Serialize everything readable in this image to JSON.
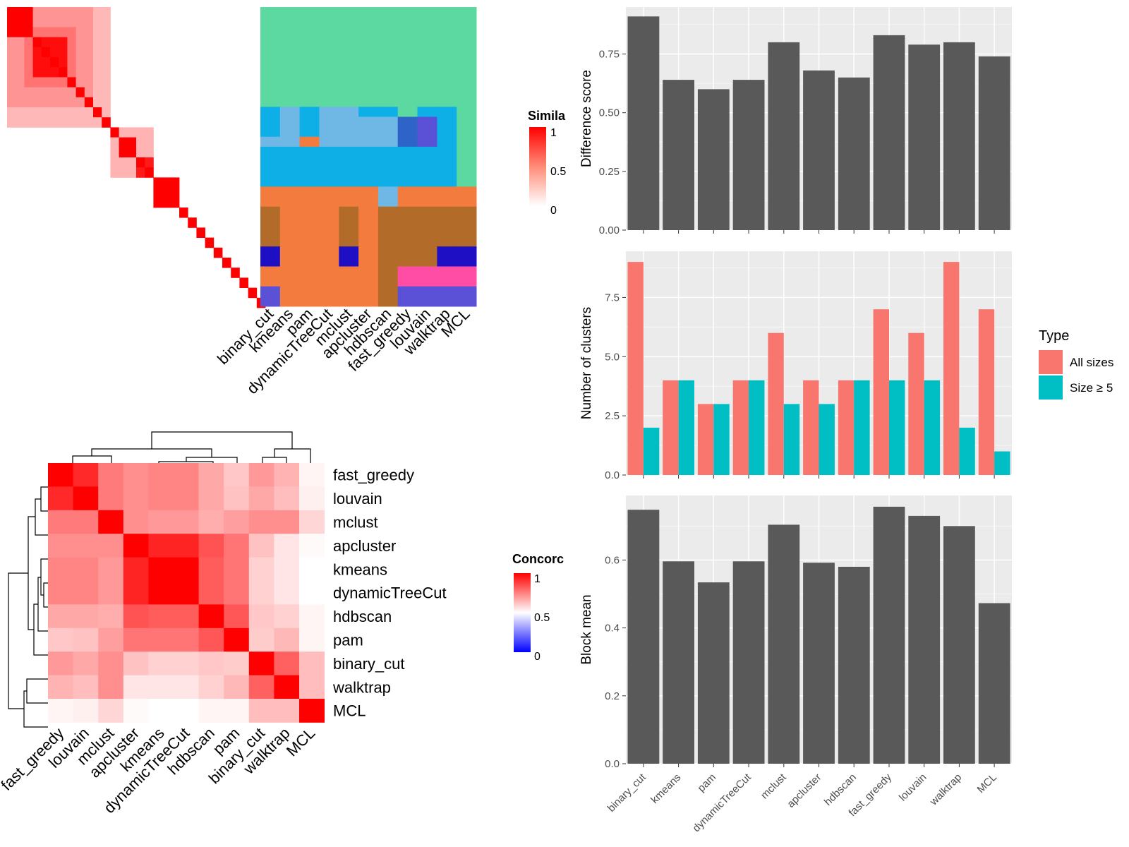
{
  "colors": {
    "bar": "#595959",
    "panel_bg": "#ebebeb",
    "all_sizes": "#f8766d",
    "size_ge5": "#00bfc4",
    "heat_high": "#ff0000",
    "heat_low": "#ffffff",
    "conc_low": "#0000ff"
  },
  "chart_data": [
    {
      "id": "similarity_heatmap",
      "type": "heatmap",
      "legend_title": "Simila",
      "legend_ticks": [
        "1",
        "0.5",
        "0"
      ],
      "note": "co-clustering similarity matrix of 30 items; values are approximate",
      "size": 30,
      "bands": [
        {
          "members": [
            0,
            1,
            2,
            3,
            4,
            5,
            6,
            7,
            8,
            9,
            10,
            11
          ],
          "value": 0.28
        },
        {
          "members": [
            0,
            1,
            2,
            3,
            4,
            5,
            6,
            7,
            8,
            9
          ],
          "value": 0.42
        },
        {
          "members": [
            0,
            1,
            2
          ],
          "value": 1.0
        },
        {
          "members": [
            2,
            3,
            4,
            5,
            6,
            7
          ],
          "value": 0.55
        },
        {
          "members": [
            3,
            4,
            5,
            6
          ],
          "value": 0.95
        },
        {
          "members": [
            13,
            14
          ],
          "value": 1.0
        },
        {
          "members": [
            15,
            16
          ],
          "value": 0.9
        },
        {
          "members": [
            17,
            18,
            19
          ],
          "value": 1.0
        },
        {
          "members": [
            12,
            13,
            14,
            15,
            16
          ],
          "value": 0.3
        }
      ]
    },
    {
      "id": "cluster_assignments",
      "type": "heatmap",
      "columns": [
        "binary_cut",
        "kmeans",
        "pam",
        "dynamicTreeCut",
        "mclust",
        "apcluster",
        "hdbscan",
        "fast_greedy",
        "louvain",
        "walktrap",
        "MCL"
      ],
      "palette": [
        "#5cd9a0",
        "#0eaee6",
        "#6fb8e6",
        "#f47b3e",
        "#b36b29",
        "#1e0fc4",
        "#ff4da6",
        "#2e64c8",
        "#5a51d6"
      ],
      "segments": [
        {
          "rows": 3,
          "codes": [
            0,
            0,
            0,
            0,
            0,
            0,
            0,
            0,
            0,
            0,
            0
          ]
        },
        {
          "rows": 7,
          "codes": [
            0,
            0,
            0,
            0,
            0,
            0,
            0,
            0,
            0,
            0,
            0
          ]
        },
        {
          "rows": 1,
          "codes": [
            1,
            2,
            1,
            2,
            2,
            1,
            1,
            0,
            1,
            1,
            0
          ]
        },
        {
          "rows": 2,
          "codes": [
            1,
            2,
            1,
            2,
            2,
            2,
            2,
            7,
            8,
            1,
            0
          ]
        },
        {
          "rows": 1,
          "codes": [
            2,
            2,
            3,
            2,
            2,
            2,
            2,
            7,
            8,
            1,
            0
          ]
        },
        {
          "rows": 4,
          "codes": [
            1,
            1,
            1,
            1,
            1,
            1,
            1,
            1,
            1,
            1,
            0
          ]
        },
        {
          "rows": 2,
          "codes": [
            3,
            3,
            3,
            3,
            3,
            3,
            2,
            3,
            3,
            3,
            3
          ]
        },
        {
          "rows": 4,
          "codes": [
            4,
            3,
            3,
            3,
            4,
            3,
            4,
            4,
            4,
            4,
            4
          ]
        },
        {
          "rows": 2,
          "codes": [
            5,
            3,
            3,
            3,
            5,
            3,
            4,
            4,
            4,
            5,
            5
          ]
        },
        {
          "rows": 2,
          "codes": [
            3,
            3,
            3,
            3,
            3,
            3,
            4,
            6,
            6,
            6,
            6
          ]
        },
        {
          "rows": 2,
          "codes": [
            8,
            3,
            3,
            3,
            3,
            3,
            4,
            8,
            8,
            8,
            8
          ]
        }
      ]
    },
    {
      "id": "concordance_heatmap",
      "type": "heatmap",
      "legend_title": "Concorc",
      "legend_ticks": [
        "1",
        "0.5",
        "0"
      ],
      "labels": [
        "fast_greedy",
        "louvain",
        "mclust",
        "apcluster",
        "kmeans",
        "dynamicTreeCut",
        "hdbscan",
        "pam",
        "binary_cut",
        "walktrap",
        "MCL"
      ],
      "matrix": [
        [
          1.0,
          0.92,
          0.76,
          0.72,
          0.74,
          0.74,
          0.67,
          0.61,
          0.7,
          0.65,
          0.52
        ],
        [
          0.92,
          1.0,
          0.76,
          0.72,
          0.74,
          0.74,
          0.67,
          0.62,
          0.67,
          0.63,
          0.53
        ],
        [
          0.76,
          0.76,
          1.0,
          0.72,
          0.7,
          0.7,
          0.66,
          0.69,
          0.72,
          0.72,
          0.58
        ],
        [
          0.72,
          0.72,
          0.72,
          1.0,
          0.93,
          0.93,
          0.84,
          0.77,
          0.62,
          0.55,
          0.51
        ],
        [
          0.74,
          0.74,
          0.7,
          0.93,
          1.0,
          1.0,
          0.82,
          0.77,
          0.59,
          0.55,
          0.5
        ],
        [
          0.74,
          0.74,
          0.7,
          0.93,
          1.0,
          1.0,
          0.82,
          0.77,
          0.59,
          0.55,
          0.5
        ],
        [
          0.67,
          0.67,
          0.66,
          0.84,
          0.82,
          0.82,
          1.0,
          0.83,
          0.61,
          0.59,
          0.52
        ],
        [
          0.61,
          0.62,
          0.69,
          0.77,
          0.77,
          0.77,
          0.83,
          1.0,
          0.6,
          0.64,
          0.52
        ],
        [
          0.7,
          0.67,
          0.72,
          0.62,
          0.59,
          0.59,
          0.61,
          0.6,
          1.0,
          0.81,
          0.63
        ],
        [
          0.65,
          0.63,
          0.72,
          0.55,
          0.55,
          0.55,
          0.59,
          0.64,
          0.81,
          1.0,
          0.63
        ],
        [
          0.52,
          0.53,
          0.58,
          0.51,
          0.5,
          0.5,
          0.52,
          0.52,
          0.63,
          0.63,
          1.0
        ]
      ]
    },
    {
      "id": "difference_score",
      "type": "bar",
      "categories": [
        "binary_cut",
        "kmeans",
        "pam",
        "dynamicTreeCut",
        "mclust",
        "apcluster",
        "hdbscan",
        "fast_greedy",
        "louvain",
        "walktrap",
        "MCL"
      ],
      "values": [
        0.91,
        0.64,
        0.6,
        0.64,
        0.8,
        0.68,
        0.65,
        0.83,
        0.79,
        0.8,
        0.74
      ],
      "ylabel": "Difference score",
      "ylim": [
        0,
        0.95
      ],
      "yticks": [
        0,
        0.25,
        0.5,
        0.75
      ],
      "ytick_labels": [
        "0.00",
        "0.25",
        "0.50",
        "0.75"
      ],
      "grid": true
    },
    {
      "id": "number_of_clusters",
      "type": "bar",
      "categories": [
        "binary_cut",
        "kmeans",
        "pam",
        "dynamicTreeCut",
        "mclust",
        "apcluster",
        "hdbscan",
        "fast_greedy",
        "louvain",
        "walktrap",
        "MCL"
      ],
      "series": [
        {
          "name": "All sizes",
          "values": [
            9,
            4,
            3,
            4,
            6,
            4,
            4,
            7,
            6,
            9,
            7
          ]
        },
        {
          "name": "Size ≥ 5",
          "values": [
            2,
            4,
            3,
            4,
            3,
            3,
            4,
            4,
            4,
            2,
            1
          ]
        }
      ],
      "ylabel": "Number of clusters",
      "ylim": [
        0,
        9.45
      ],
      "yticks": [
        0,
        2.5,
        5,
        7.5
      ],
      "ytick_labels": [
        "0.0",
        "2.5",
        "5.0",
        "7.5"
      ],
      "legend_title": "Type",
      "legend_position": "right",
      "grid": true
    },
    {
      "id": "block_mean",
      "type": "bar",
      "categories": [
        "binary_cut",
        "kmeans",
        "pam",
        "dynamicTreeCut",
        "mclust",
        "apcluster",
        "hdbscan",
        "fast_greedy",
        "louvain",
        "walktrap",
        "MCL"
      ],
      "values": [
        0.748,
        0.596,
        0.534,
        0.596,
        0.704,
        0.592,
        0.58,
        0.757,
        0.73,
        0.7,
        0.473
      ],
      "ylabel": "Block mean",
      "ylim": [
        0,
        0.79
      ],
      "yticks": [
        0,
        0.2,
        0.4,
        0.6
      ],
      "ytick_labels": [
        "0.0",
        "0.2",
        "0.4",
        "0.6"
      ],
      "grid": true
    }
  ]
}
